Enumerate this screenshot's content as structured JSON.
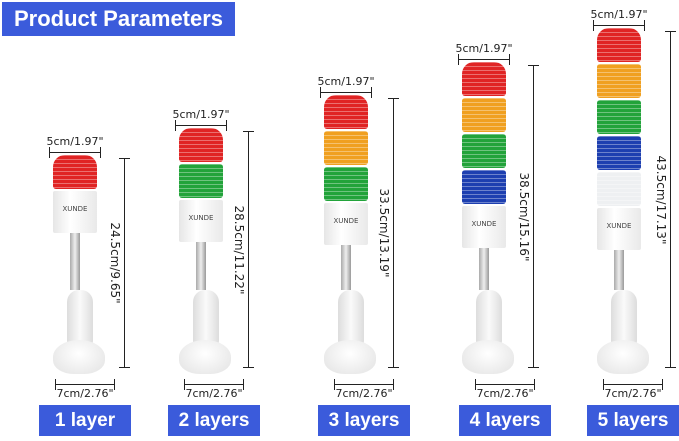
{
  "title": "Product Parameters",
  "brand": "XUNDE",
  "accent_color": "#3b5bdb",
  "light_colors": {
    "red": "#e02424",
    "orange": "#f0a020",
    "green": "#22a33a",
    "blue": "#1d3fb0",
    "white": "#eef0f2"
  },
  "towers": [
    {
      "label": "1 layer",
      "top_width": "5cm/1.97\"",
      "base_width": "7cm/2.76\"",
      "height": "24.5cm/9.65\"",
      "layers": [
        "red"
      ]
    },
    {
      "label": "2 layers",
      "top_width": "5cm/1.97\"",
      "base_width": "7cm/2.76\"",
      "height": "28.5cm/11.22\"",
      "layers": [
        "red",
        "green"
      ]
    },
    {
      "label": "3 layers",
      "top_width": "5cm/1.97\"",
      "base_width": "7cm/2.76\"",
      "height": "33.5cm/13.19\"",
      "layers": [
        "red",
        "orange",
        "green"
      ]
    },
    {
      "label": "4 layers",
      "top_width": "5cm/1.97\"",
      "base_width": "7cm/2.76\"",
      "height": "38.5cm/15.16\"",
      "layers": [
        "red",
        "orange",
        "green",
        "blue"
      ]
    },
    {
      "label": "5 layers",
      "top_width": "5cm/1.97\"",
      "base_width": "7cm/2.76\"",
      "height": "43.5cm/17.13\"",
      "layers": [
        "red",
        "orange",
        "green",
        "blue",
        "white"
      ]
    }
  ]
}
